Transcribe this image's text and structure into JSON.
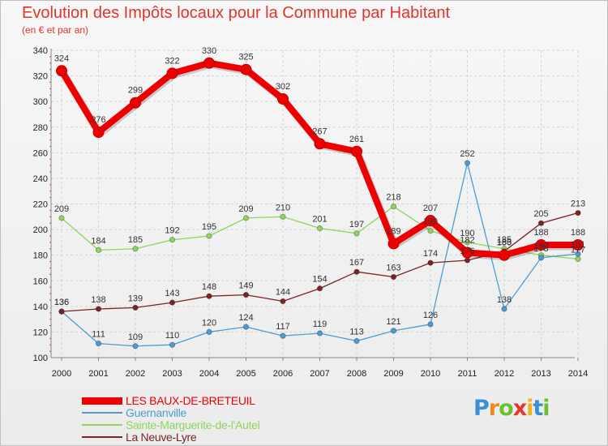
{
  "chart_data": {
    "type": "line",
    "title": "Evolution des Impôts locaux pour la Commune par Habitant",
    "subtitle": "(en € et par an)",
    "xlabel": "",
    "ylabel": "",
    "x": [
      "2000",
      "2001",
      "2002",
      "2003",
      "2004",
      "2005",
      "2006",
      "2007",
      "2008",
      "2009",
      "2010",
      "2011",
      "2012",
      "2013",
      "2014"
    ],
    "ylim": [
      100,
      340
    ],
    "yticks": [
      100,
      120,
      140,
      160,
      180,
      200,
      220,
      240,
      260,
      280,
      300,
      320,
      340
    ],
    "grid": true,
    "legend_position": "bottom-left",
    "series": [
      {
        "name": "LES BAUX-DE-BRETEUIL",
        "color": "#ee0000",
        "values": [
          324,
          276,
          299,
          322,
          330,
          325,
          302,
          267,
          261,
          189,
          207,
          182,
          180,
          188,
          188
        ],
        "labels": [
          "324",
          "276",
          "299",
          "322",
          "330",
          "325",
          "302",
          "267",
          "261",
          "189",
          "207",
          "182",
          "180",
          "188",
          "188"
        ]
      },
      {
        "name": "Guernanville",
        "color": "#4f9bd1",
        "values": [
          136,
          111,
          109,
          110,
          120,
          124,
          117,
          119,
          113,
          121,
          126,
          252,
          138,
          178,
          181
        ],
        "labels": [
          "136",
          "111",
          "109",
          "110",
          "120",
          "124",
          "117",
          "119",
          "113",
          "121",
          "126",
          "252",
          "138",
          "178",
          "181"
        ]
      },
      {
        "name": "Sainte-Marguerite-de-l'Autel",
        "color": "#8fd45e",
        "values": [
          209,
          184,
          185,
          192,
          195,
          209,
          210,
          201,
          197,
          218,
          199,
          190,
          185,
          180,
          177
        ],
        "labels": [
          "209",
          "184",
          "185",
          "192",
          "195",
          "209",
          "210",
          "201",
          "197",
          "218",
          "199",
          "190",
          "185",
          "180",
          "177"
        ]
      },
      {
        "name": "La Neuve-Lyre",
        "color": "#7a2424",
        "values": [
          136,
          138,
          139,
          143,
          148,
          149,
          144,
          154,
          167,
          163,
          174,
          176,
          183,
          205,
          213
        ],
        "labels": [
          "136",
          "138",
          "139",
          "143",
          "148",
          "149",
          "144",
          "154",
          "167",
          "163",
          "174",
          "176",
          "183",
          "205",
          "213"
        ]
      }
    ]
  },
  "legend": {
    "items": [
      {
        "label": "LES BAUX-DE-BRETEUIL",
        "color": "#ee0000"
      },
      {
        "label": "Guernanville",
        "color": "#4f9bd1"
      },
      {
        "label": "Sainte-Marguerite-de-l'Autel",
        "color": "#8fd45e"
      },
      {
        "label": "La Neuve-Lyre",
        "color": "#7a2424"
      }
    ]
  },
  "logo": {
    "letters": [
      "P",
      "r",
      "o",
      "x",
      "i",
      "t",
      "i"
    ],
    "colors": [
      "#3a8fd8",
      "#f08a1c",
      "#6cbf2e",
      "#e8352b",
      "#f0b41c",
      "#3a8fd8",
      "#6cbf2e"
    ]
  }
}
